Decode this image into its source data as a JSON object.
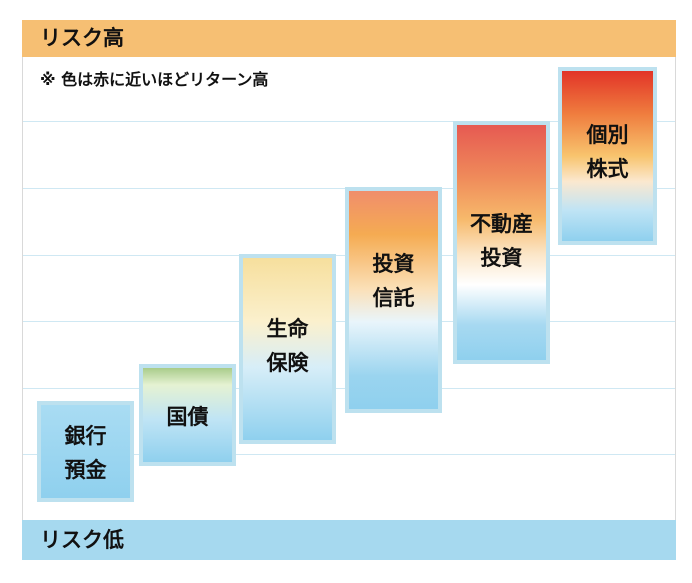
{
  "header": {
    "label": "リスク高"
  },
  "footer": {
    "label": "リスク低"
  },
  "note": "※ 色は赤に近いほどリターン高",
  "colors": {
    "high_band": "#f6bf73",
    "low_band": "#a6d9ef",
    "low_risk": "#8fd0ee",
    "high_risk": "#e23428"
  },
  "steps": [
    {
      "label": "銀行\n預金"
    },
    {
      "label": "国債"
    },
    {
      "label": "生命\n保険"
    },
    {
      "label": "投資\n信託"
    },
    {
      "label": "不動産\n投資"
    },
    {
      "label": "個別\n株式"
    }
  ]
}
